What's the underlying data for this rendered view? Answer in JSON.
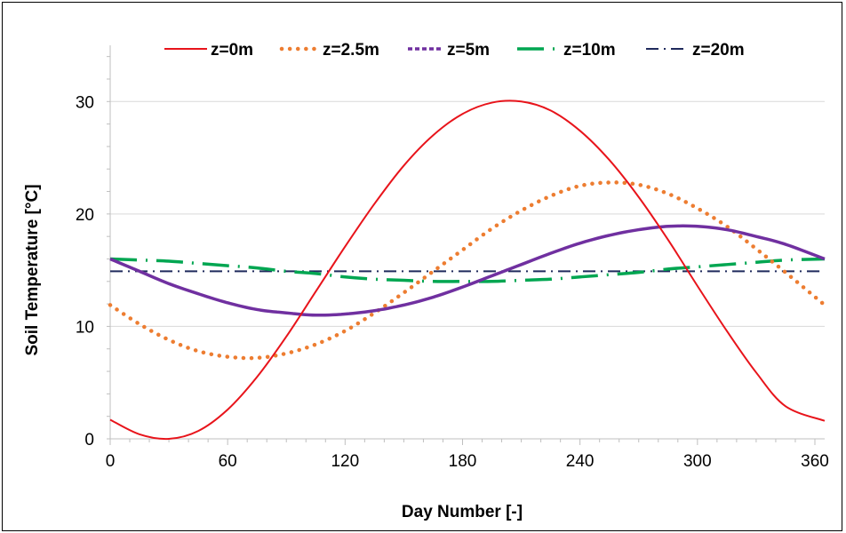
{
  "chart_data": {
    "type": "line",
    "title": "",
    "xlabel": "Day Number [-]",
    "ylabel": "Soil Temperature [°C]",
    "xlim": [
      0,
      365
    ],
    "ylim": [
      0,
      35
    ],
    "xticks": [
      0,
      60,
      120,
      180,
      240,
      300,
      360
    ],
    "xtick_labels": [
      "0",
      "60",
      "120",
      "180",
      "240",
      "300",
      "360"
    ],
    "yticks": [
      0,
      10,
      20,
      30
    ],
    "ytick_labels": [
      "0",
      "10",
      "20",
      "30"
    ],
    "grid": "horizontal",
    "legend_position": "top",
    "x": [
      0,
      15,
      30,
      45,
      60,
      75,
      90,
      105,
      120,
      135,
      150,
      165,
      180,
      195,
      210,
      225,
      240,
      255,
      270,
      285,
      300,
      315,
      330,
      345,
      365
    ],
    "series": [
      {
        "name": "z=0m",
        "color": "#e8141b",
        "dash": "solid",
        "values": [
          1.7,
          0.4,
          0.0,
          0.7,
          2.6,
          5.5,
          9.1,
          13.1,
          17.1,
          20.9,
          24.3,
          27.0,
          28.9,
          29.9,
          30.0,
          29.2,
          27.4,
          24.8,
          21.5,
          17.7,
          13.6,
          9.6,
          5.9,
          2.9,
          1.6
        ]
      },
      {
        "name": "z=2.5m",
        "color": "#ed7d31",
        "dash": "dot",
        "values": [
          11.9,
          10.2,
          8.8,
          7.8,
          7.3,
          7.2,
          7.6,
          8.4,
          9.6,
          11.2,
          13.0,
          14.9,
          16.8,
          18.7,
          20.3,
          21.6,
          22.5,
          22.8,
          22.6,
          21.8,
          20.5,
          18.9,
          16.9,
          14.8,
          11.9
        ]
      },
      {
        "name": "z=5m",
        "color": "#7030a0",
        "dash": "dash",
        "values": [
          16.0,
          14.9,
          13.8,
          12.9,
          12.1,
          11.5,
          11.2,
          11.0,
          11.1,
          11.4,
          11.9,
          12.6,
          13.5,
          14.5,
          15.5,
          16.5,
          17.4,
          18.1,
          18.6,
          18.9,
          18.9,
          18.6,
          18.0,
          17.3,
          16.0
        ]
      },
      {
        "name": "z=10m",
        "color": "#00a651",
        "dash": "dashdot",
        "values": [
          16.0,
          15.9,
          15.8,
          15.6,
          15.4,
          15.2,
          14.9,
          14.7,
          14.4,
          14.2,
          14.1,
          14.0,
          14.0,
          14.0,
          14.1,
          14.2,
          14.4,
          14.6,
          14.8,
          15.1,
          15.3,
          15.5,
          15.7,
          15.9,
          16.0
        ]
      },
      {
        "name": "z=20m",
        "color": "#1f2a5c",
        "dash": "dashdotthin",
        "values": [
          14.9,
          14.9,
          14.9,
          14.9,
          14.9,
          14.9,
          14.9,
          14.9,
          14.9,
          14.9,
          14.9,
          14.9,
          14.9,
          14.9,
          14.9,
          14.9,
          14.9,
          14.9,
          14.9,
          14.9,
          14.9,
          14.9,
          14.9,
          14.9,
          14.9
        ]
      }
    ]
  }
}
